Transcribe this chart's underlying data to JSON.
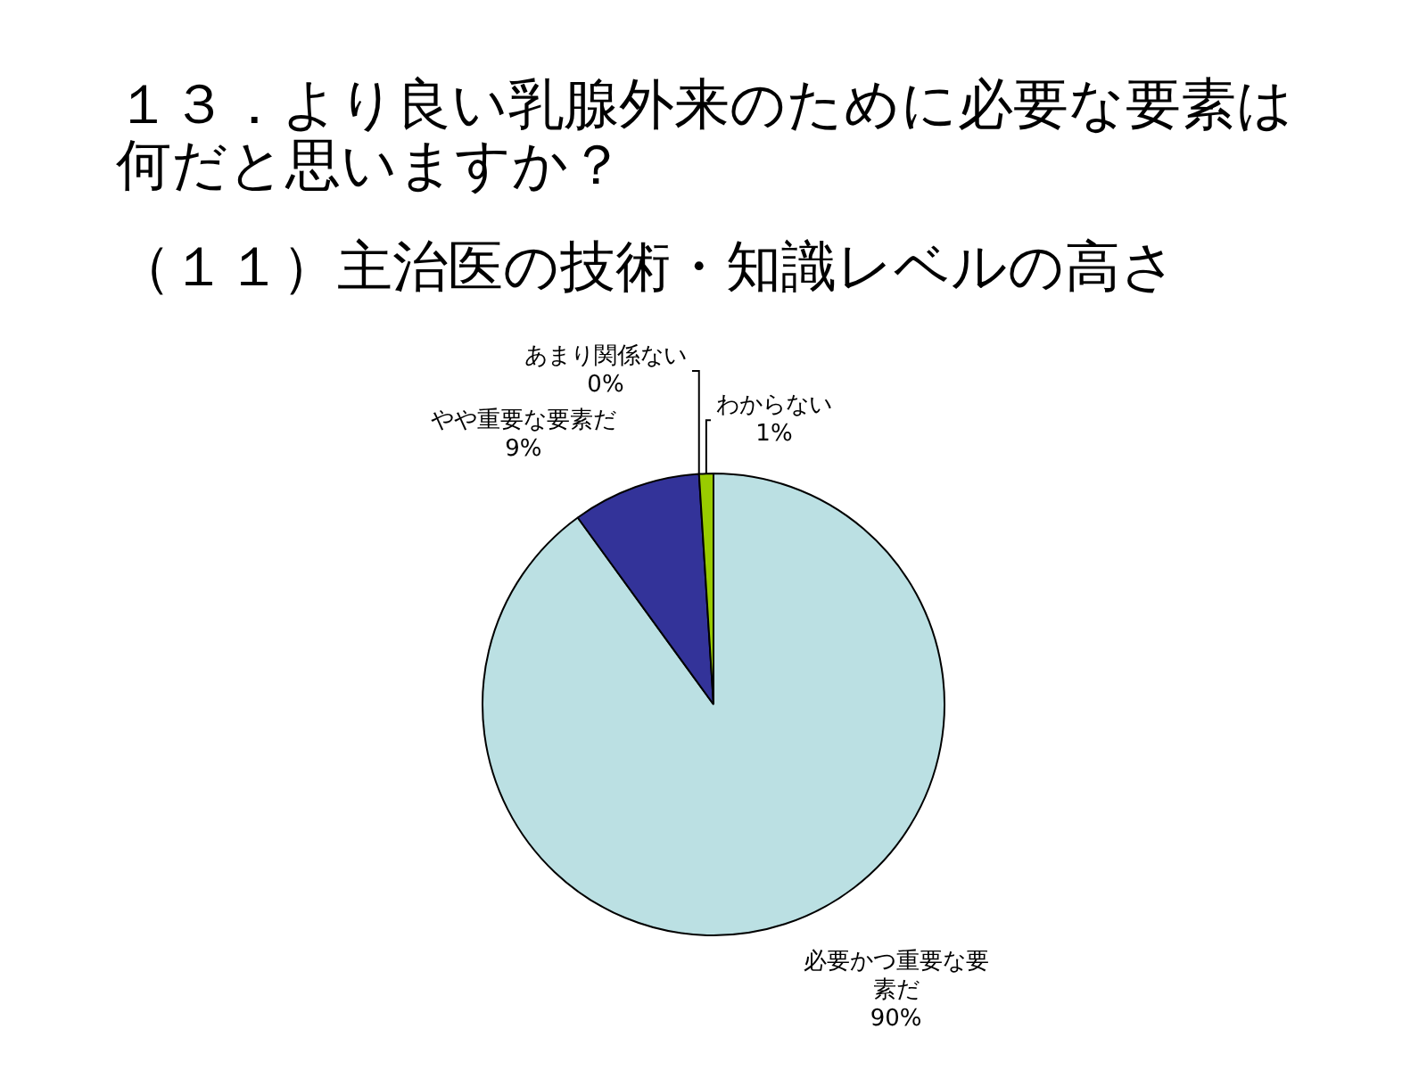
{
  "chart_data": {
    "type": "pie",
    "title": "１３．より良い乳腺外来のために必要な要素は何だと思いますか？",
    "subtitle": "（１１）主治医の技術・知識レベルの高さ",
    "categories": [
      "必要かつ重要な要素だ",
      "やや重要な要素だ",
      "あまり関係ない",
      "わからない"
    ],
    "values": [
      90,
      9,
      0,
      1
    ],
    "colors": [
      "#bbe0e3",
      "#333399",
      "#ffffcc",
      "#99cc00"
    ],
    "value_labels": [
      "90%",
      "9%",
      "0%",
      "1%"
    ],
    "legend": false
  }
}
